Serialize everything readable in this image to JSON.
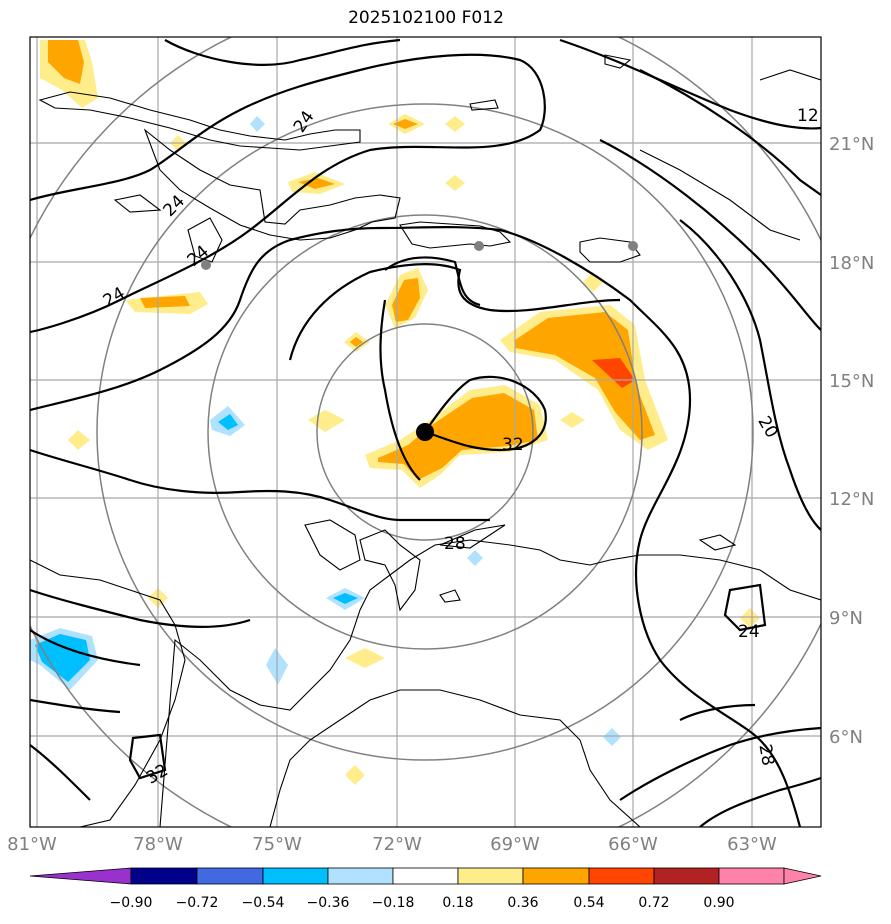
{
  "title": "2025102100 F012",
  "map": {
    "lon_labels": [
      "81°W",
      "78°W",
      "75°W",
      "72°W",
      "69°W",
      "66°W",
      "63°W"
    ],
    "lat_labels": [
      "21°N",
      "18°N",
      "15°N",
      "12°N",
      "9°N",
      "6°N"
    ],
    "contour_labels": [
      "12",
      "24",
      "24",
      "24",
      "24",
      "20",
      "32",
      "28",
      "24",
      "32",
      "28"
    ],
    "center_marker": {
      "lon": -71.3,
      "lat": 13.7
    }
  },
  "colorbar": {
    "ticks": [
      "−0.90",
      "−0.72",
      "−0.54",
      "−0.36",
      "−0.18",
      "0.18",
      "0.36",
      "0.54",
      "0.72",
      "0.90"
    ],
    "colors": [
      "#9932cc",
      "#00008b",
      "#4169e1",
      "#00bfff",
      "#b0e2ff",
      "#ffffff",
      "#ffec8b",
      "#ffa500",
      "#ff4500",
      "#b22222",
      "#ff82ab"
    ]
  },
  "colors": {
    "shade_light": "#ffec8b",
    "shade_mid": "#ffa500",
    "shade_high": "#ff4500",
    "shade_neg_light": "#b0e2ff",
    "shade_neg": "#00bfff",
    "grid": "#888888"
  }
}
